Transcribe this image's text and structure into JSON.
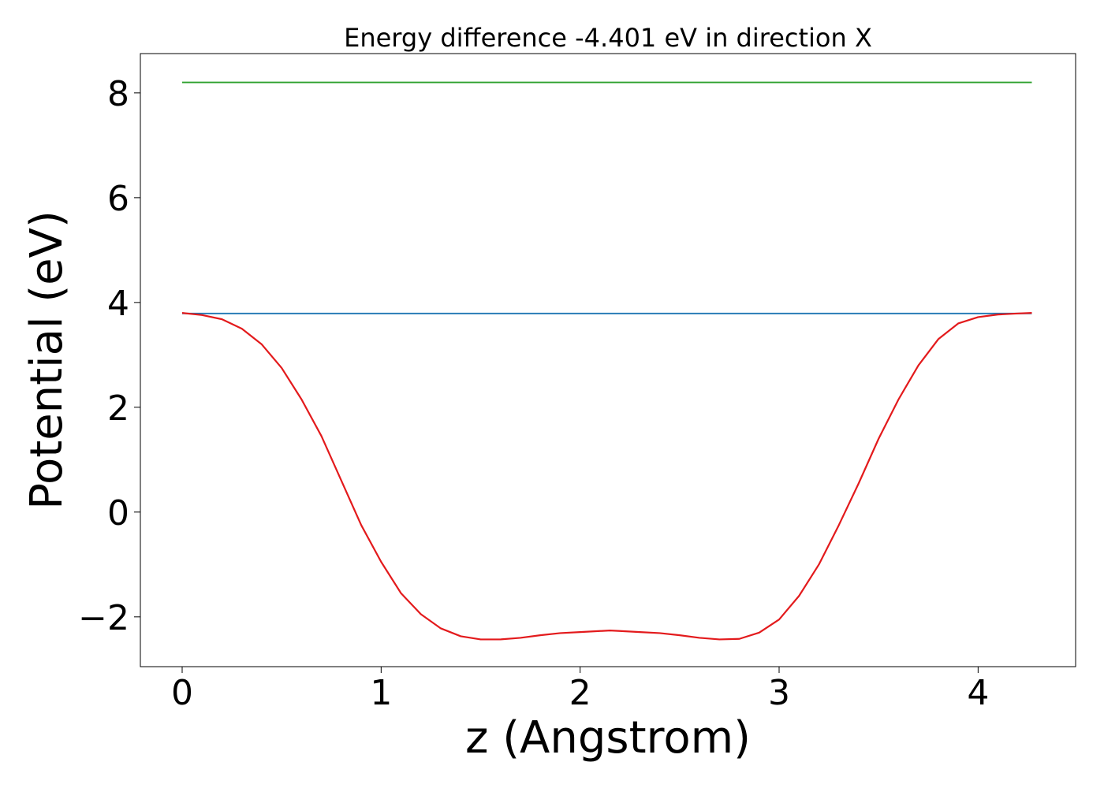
{
  "chart_data": {
    "type": "line",
    "title": "Energy difference -4.401 eV in direction X",
    "xlabel": "z (Angstrom)",
    "ylabel": "Potential (eV)",
    "xlim": [
      -0.21,
      4.49
    ],
    "ylim": [
      -2.95,
      8.75
    ],
    "xticks": [
      {
        "value": 0,
        "label": "0"
      },
      {
        "value": 1,
        "label": "1"
      },
      {
        "value": 2,
        "label": "2"
      },
      {
        "value": 3,
        "label": "3"
      },
      {
        "value": 4,
        "label": "4"
      }
    ],
    "yticks": [
      {
        "value": -2,
        "label": "−2"
      },
      {
        "value": 0,
        "label": "0"
      },
      {
        "value": 2,
        "label": "2"
      },
      {
        "value": 4,
        "label": "4"
      },
      {
        "value": 6,
        "label": "6"
      },
      {
        "value": 8,
        "label": "8"
      }
    ],
    "grid": false,
    "legend": "none",
    "series": [
      {
        "color": "#2ca02c",
        "x": [
          0,
          4.27
        ],
        "y": [
          8.2,
          8.2
        ]
      },
      {
        "color": "#1f77b4",
        "x": [
          0,
          4.27
        ],
        "y": [
          3.79,
          3.79
        ]
      },
      {
        "color": "#e31a1c",
        "x": [
          0,
          0.1,
          0.2,
          0.3,
          0.4,
          0.5,
          0.6,
          0.7,
          0.8,
          0.9,
          1.0,
          1.1,
          1.2,
          1.3,
          1.4,
          1.5,
          1.6,
          1.7,
          1.8,
          1.9,
          2.0,
          2.1,
          2.15,
          2.2,
          2.3,
          2.4,
          2.5,
          2.6,
          2.7,
          2.8,
          2.9,
          3.0,
          3.1,
          3.2,
          3.3,
          3.4,
          3.5,
          3.6,
          3.7,
          3.8,
          3.9,
          4.0,
          4.1,
          4.2,
          4.27
        ],
        "y": [
          3.8,
          3.76,
          3.68,
          3.5,
          3.2,
          2.75,
          2.15,
          1.45,
          0.6,
          -0.25,
          -0.95,
          -1.55,
          -1.95,
          -2.22,
          -2.37,
          -2.43,
          -2.43,
          -2.4,
          -2.35,
          -2.31,
          -2.29,
          -2.27,
          -2.26,
          -2.27,
          -2.29,
          -2.31,
          -2.35,
          -2.4,
          -2.43,
          -2.42,
          -2.3,
          -2.05,
          -1.6,
          -1.0,
          -0.25,
          0.55,
          1.4,
          2.15,
          2.8,
          3.3,
          3.6,
          3.72,
          3.77,
          3.79,
          3.8
        ]
      }
    ]
  }
}
